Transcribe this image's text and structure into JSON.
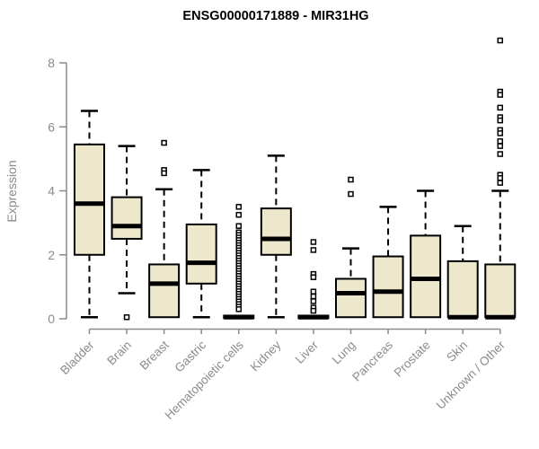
{
  "title": "ENSG00000171889 - MIR31HG",
  "colors": {
    "background": "#ffffff",
    "box_fill": "#EDE7CC",
    "box_border": "#000000",
    "median": "#000000",
    "whisker": "#000000",
    "outlier_border": "#000000",
    "outlier_fill": "#ffffff",
    "axis": "#8b8b8b",
    "tick_text": "#8b8b8b",
    "title_text": "#000000"
  },
  "chart_data": {
    "type": "boxplot",
    "title": "ENSG00000171889 - MIR31HG",
    "xlabel": "",
    "ylabel": "Expression",
    "ylim": [
      0,
      8
    ],
    "yticks": [
      0,
      2,
      4,
      6,
      8
    ],
    "grid": false,
    "legend": false,
    "categories": [
      "Bladder",
      "Brain",
      "Breast",
      "Gastric",
      "Hematopoietic cells",
      "Kidney",
      "Liver",
      "Lung",
      "Pancreas",
      "Prostate",
      "Skin",
      "Unknown / Other"
    ],
    "series": [
      {
        "name": "Bladder",
        "min": 0.05,
        "q1": 2.0,
        "median": 3.6,
        "q3": 5.45,
        "max": 6.5,
        "outliers": []
      },
      {
        "name": "Brain",
        "min": 0.8,
        "q1": 2.5,
        "median": 2.9,
        "q3": 3.8,
        "max": 5.4,
        "outliers": [
          0.05
        ]
      },
      {
        "name": "Breast",
        "min": 0.05,
        "q1": 0.05,
        "median": 1.1,
        "q3": 1.7,
        "max": 4.05,
        "outliers": [
          5.5,
          4.65,
          4.55
        ]
      },
      {
        "name": "Gastric",
        "min": 0.05,
        "q1": 1.1,
        "median": 1.75,
        "q3": 2.95,
        "max": 4.65,
        "outliers": []
      },
      {
        "name": "Hematopoietic cells",
        "min": 0.0,
        "q1": 0.02,
        "median": 0.05,
        "q3": 0.1,
        "max": 0.12,
        "outliers": [
          3.5,
          3.25,
          2.9,
          2.7,
          2.62,
          2.54,
          2.46,
          2.38,
          2.3,
          2.22,
          2.14,
          2.06,
          1.98,
          1.9,
          1.82,
          1.74,
          1.66,
          1.58,
          1.5,
          1.42,
          1.34,
          1.26,
          1.18,
          1.1,
          1.02,
          0.94,
          0.86,
          0.78,
          0.7,
          0.62,
          0.54,
          0.46,
          0.38,
          0.3
        ]
      },
      {
        "name": "Kidney",
        "min": 0.05,
        "q1": 2.0,
        "median": 2.5,
        "q3": 3.45,
        "max": 5.1,
        "outliers": []
      },
      {
        "name": "Liver",
        "min": 0.0,
        "q1": 0.02,
        "median": 0.05,
        "q3": 0.1,
        "max": 0.12,
        "outliers": [
          2.4,
          2.15,
          1.4,
          1.3,
          0.85,
          0.7,
          0.55,
          0.35,
          0.25
        ]
      },
      {
        "name": "Lung",
        "min": 0.05,
        "q1": 0.05,
        "median": 0.8,
        "q3": 1.25,
        "max": 2.2,
        "outliers": [
          4.35,
          3.9
        ]
      },
      {
        "name": "Pancreas",
        "min": 0.05,
        "q1": 0.05,
        "median": 0.85,
        "q3": 1.95,
        "max": 3.5,
        "outliers": []
      },
      {
        "name": "Prostate",
        "min": 0.05,
        "q1": 0.05,
        "median": 1.25,
        "q3": 2.6,
        "max": 4.0,
        "outliers": []
      },
      {
        "name": "Skin",
        "min": 0.05,
        "q1": 0.05,
        "median": 0.05,
        "q3": 1.8,
        "max": 2.9,
        "outliers": []
      },
      {
        "name": "Unknown / Other",
        "min": 0.05,
        "q1": 0.05,
        "median": 0.05,
        "q3": 1.7,
        "max": 4.0,
        "outliers": [
          8.7,
          7.1,
          7.0,
          6.6,
          6.3,
          6.2,
          5.9,
          5.8,
          5.55,
          5.4,
          5.15,
          4.5,
          4.4,
          4.25
        ]
      }
    ]
  }
}
